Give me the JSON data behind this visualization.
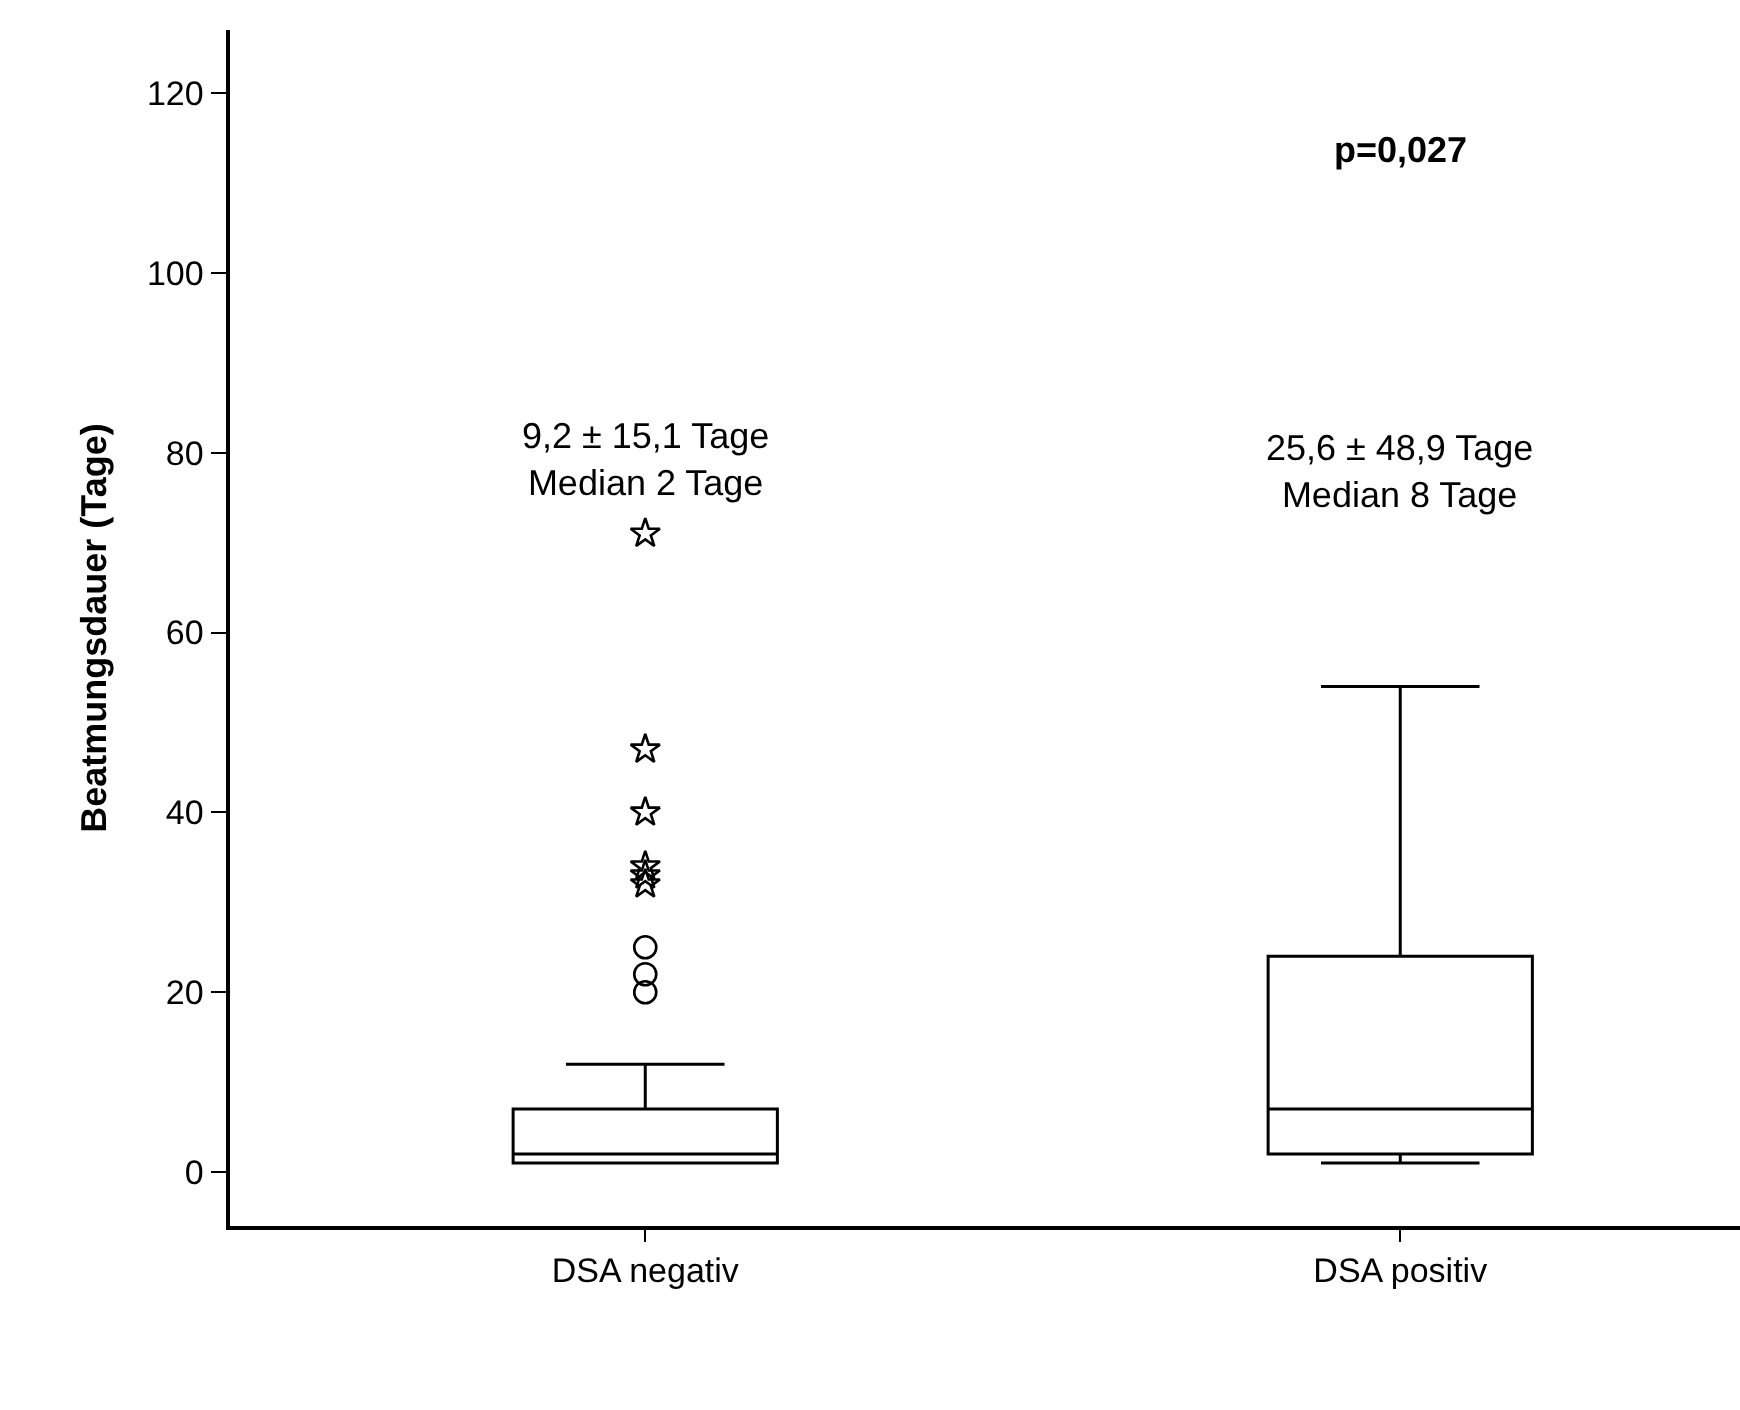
{
  "chart_data": {
    "type": "box",
    "ylabel": "Beatmungsdauer (Tage)",
    "categories": [
      "DSA negativ",
      "DSA positiv"
    ],
    "boxes": [
      {
        "low": 1,
        "q1": 1,
        "median": 2,
        "q3": 7,
        "high": 12
      },
      {
        "low": 1,
        "q1": 2,
        "median": 7,
        "q3": 24,
        "high": 54
      }
    ],
    "series": [
      {
        "type": "scatter",
        "marker": "circle",
        "color": "#000000",
        "x": [
          "DSA negativ",
          "DSA negativ",
          "DSA negativ"
        ],
        "values": [
          20,
          22,
          25
        ]
      },
      {
        "type": "scatter",
        "marker": "star",
        "color": "#000000",
        "x": [
          "DSA negativ",
          "DSA negativ",
          "DSA negativ",
          "DSA negativ",
          "DSA negativ",
          "DSA negativ"
        ],
        "values": [
          32,
          33,
          34,
          40,
          47,
          71
        ]
      }
    ],
    "ylim": [
      -6,
      127
    ],
    "yticks": [
      0,
      20,
      40,
      60,
      80,
      100,
      120
    ],
    "annotations": [
      "9,2 ± 15,1 Tage\nMedian 2 Tage",
      "25,6 ± 48,9 Tage\nMedian 8 Tage",
      "p=0,027"
    ]
  }
}
